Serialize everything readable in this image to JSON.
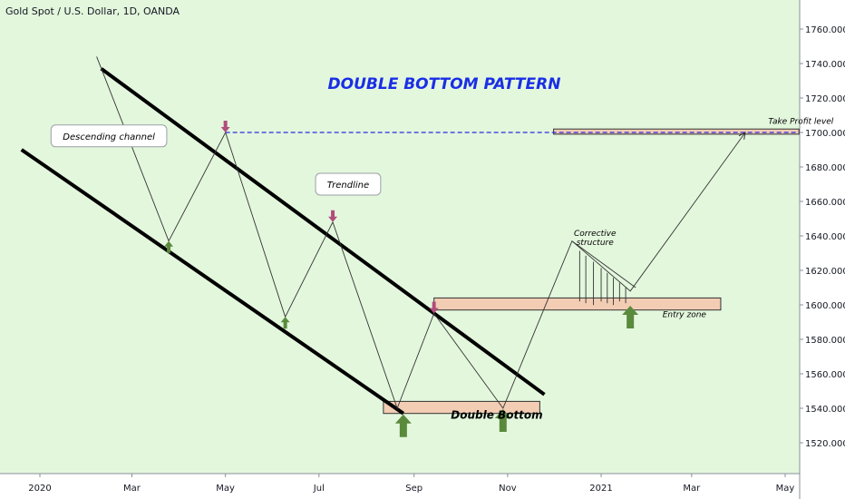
{
  "header": {
    "symbol_line": "Gold Spot / U.S. Dollar, 1D, OANDA"
  },
  "colors": {
    "plot_background": "#e3f7dd",
    "pattern_title": "#1a2ee6",
    "level_line": "#2b2be0",
    "zone_fill": "#f2cdb4",
    "up_arrow": "#5a8a3c",
    "down_arrow": "#b24c7c",
    "channel": "#000000"
  },
  "chart_data": {
    "type": "line",
    "title": "DOUBLE BOTTOM PATTERN",
    "xlabel": "",
    "ylabel": "",
    "x_ticks": [
      "2020",
      "Mar",
      "May",
      "Jul",
      "Sep",
      "Nov",
      "2021",
      "Mar",
      "May"
    ],
    "y_ticks": [
      1520,
      1540,
      1560,
      1580,
      1600,
      1620,
      1640,
      1660,
      1680,
      1700,
      1720,
      1740,
      1760
    ],
    "ylim": [
      1505,
      1780
    ],
    "xlim": [
      "2019-12-01",
      "2021-05-15"
    ],
    "grid": false,
    "channel_lines": [
      {
        "name": "upper",
        "points": [
          [
            "2020-02-10",
            1737
          ],
          [
            "2020-11-25",
            1548
          ]
        ]
      },
      {
        "name": "lower",
        "points": [
          [
            "2019-12-20",
            1690
          ],
          [
            "2020-08-25",
            1537
          ]
        ]
      }
    ],
    "price_path": [
      [
        "2020-02-07",
        1744
      ],
      [
        "2020-03-25",
        1637
      ],
      [
        "2020-05-01",
        1700
      ],
      [
        "2020-06-09",
        1593
      ],
      [
        "2020-07-10",
        1648
      ],
      [
        "2020-08-21",
        1540
      ],
      [
        "2020-09-14",
        1595
      ],
      [
        "2020-10-29",
        1540
      ],
      [
        "2020-12-13",
        1637
      ],
      [
        "2021-01-20",
        1608
      ],
      [
        "2021-04-05",
        1700
      ]
    ],
    "horizontal_levels": [
      {
        "label": "Take Profit level",
        "value": 1700,
        "style": "dashed",
        "from": "2020-05-01",
        "to": "2021-05-10"
      }
    ],
    "zones": [
      {
        "label": "Double Bottom",
        "from": "2020-08-12",
        "to": "2020-11-22",
        "low": 1537,
        "high": 1544
      },
      {
        "label": "Entry zone",
        "from": "2020-09-14",
        "to": "2021-03-20",
        "low": 1597,
        "high": 1604
      },
      {
        "label": "",
        "from": "2020-12-01",
        "to": "2021-05-10",
        "low": 1699,
        "high": 1702
      }
    ],
    "corrective_structure": {
      "label": "Corrective structure",
      "points": [
        [
          "2020-12-13",
          1637
        ],
        [
          "2021-01-20",
          1610
        ]
      ],
      "wick_dates": [
        "2020-12-18",
        "2020-12-22",
        "2020-12-27",
        "2021-01-01",
        "2021-01-05",
        "2021-01-09",
        "2021-01-13",
        "2021-01-17"
      ]
    },
    "markers": [
      {
        "type": "down",
        "date": "2020-05-01",
        "value": 1700
      },
      {
        "type": "down",
        "date": "2020-07-10",
        "value": 1648
      },
      {
        "type": "down",
        "date": "2020-09-14",
        "value": 1595
      },
      {
        "type": "up_small",
        "date": "2020-03-25",
        "value": 1637
      },
      {
        "type": "up_small",
        "date": "2020-06-09",
        "value": 1593
      },
      {
        "type": "up_big",
        "date": "2020-08-25",
        "value": 1537
      },
      {
        "type": "up_big",
        "date": "2020-10-29",
        "value": 1540
      },
      {
        "type": "up_big",
        "date": "2021-01-20",
        "value": 1600
      }
    ],
    "annotations": [
      {
        "text": "Descending channel",
        "kind": "callout",
        "date": "2020-02-15",
        "value": 1698
      },
      {
        "text": "Trendline",
        "kind": "callout",
        "date": "2020-07-20",
        "value": 1670
      },
      {
        "text": "Double Bottom",
        "kind": "label",
        "date": "2020-09-25",
        "value": 1534
      },
      {
        "text": "Entry zone",
        "kind": "label",
        "date": "2021-02-10",
        "value": 1593
      },
      {
        "text": "Take Profit level",
        "kind": "label",
        "date": "2021-04-20",
        "value": 1705
      }
    ]
  }
}
